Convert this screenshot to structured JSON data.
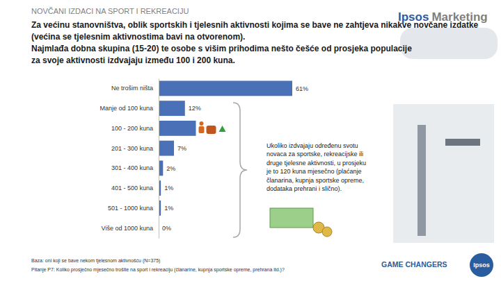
{
  "chart_data": {
    "type": "bar",
    "orientation": "horizontal",
    "title": "NOVČANI IZDACI NA SPORT I REKREACIJU",
    "subtitle": [
      "Za većinu stanovništva, oblik sportskih i tjelesnih aktivnosti kojima se bave ne zahtjeva nikakve novčane izdatke",
      "(većina se tjelesnim aktivnostima bavi na otvorenom).",
      "Najmlađa dobna skupina (15-20) te osobe s višim prihodima nešto češće od prosjeka populacije",
      "za svoje aktivnosti izdvajaju između 100 i 200 kuna."
    ],
    "categories": [
      "Ne trošim ništa",
      "Manje od 100 kuna",
      "100 - 200 kuna",
      "201 - 300 kuna",
      "301 - 400 kuna",
      "401 - 500 kuna",
      "501 - 1000 kuna",
      "Više od 1000 kuna"
    ],
    "values": [
      61,
      12,
      17,
      7,
      2,
      1,
      1,
      0
    ],
    "value_labels": [
      "61%",
      "12%",
      null,
      "7%",
      "2%",
      "1%",
      "1%",
      "0%"
    ],
    "data_labels": true,
    "color": "#4a70b8",
    "xlim": [
      0,
      61
    ],
    "tick_labels": "y",
    "grid": false,
    "annotation": [
      "Ukoliko izdvajaju određenu svotu",
      "novaca za sportske, rekreacijske ili",
      "druge tjelesne aktivnosti, u prosjeku",
      "je to 120 kuna mjesečno (plaćanje",
      "članarina, kupnja sportske opreme,",
      "dodataka prehrani i slično)."
    ]
  },
  "header": {
    "brand": "Ipsos",
    "unit": "Marketing"
  },
  "footer": {
    "base": "Baza: oni koji se bave nekom tjelesnom aktivnošću (N=375)",
    "question": "Pitanje P7: Koliko prosječno mjesečno trošite na sport i rekreaciju (članarine, kupnja sportske opreme, prehrana itd.)?",
    "tagline": "GAME CHANGERS",
    "badge": "Ipsos"
  }
}
